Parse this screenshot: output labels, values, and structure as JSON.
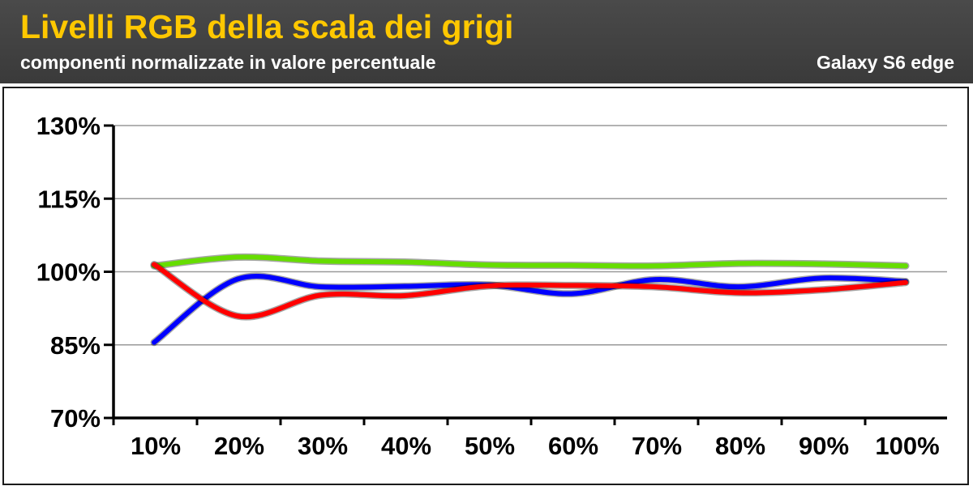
{
  "header": {
    "title": "Livelli RGB della scala dei grigi",
    "subtitle": "componenti normalizzate in valore percentuale",
    "device": "Galaxy S6 edge"
  },
  "colors": {
    "header_bg": "#404040",
    "title": "#ffc800",
    "red": "#ff0000",
    "green": "#66dd00",
    "blue": "#0000ff",
    "grid": "#999999"
  },
  "chart_data": {
    "type": "line",
    "title": "Livelli RGB della scala dei grigi",
    "subtitle": "componenti normalizzate in valore percentuale",
    "categories": [
      "10%",
      "20%",
      "30%",
      "40%",
      "50%",
      "60%",
      "70%",
      "80%",
      "90%",
      "100%"
    ],
    "y_ticks": [
      "70%",
      "85%",
      "100%",
      "115%",
      "130%"
    ],
    "ylim": [
      70,
      130
    ],
    "grid": true,
    "series": [
      {
        "color_key": "green",
        "values": [
          101.2,
          103.0,
          102.2,
          102.0,
          101.4,
          101.3,
          101.2,
          101.7,
          101.6,
          101.2
        ]
      },
      {
        "color_key": "blue",
        "values": [
          85.5,
          98.5,
          96.9,
          97.0,
          97.3,
          95.5,
          98.4,
          96.9,
          98.7,
          98.0
        ]
      },
      {
        "color_key": "red",
        "values": [
          101.5,
          90.9,
          95.2,
          95.1,
          97.1,
          97.2,
          96.9,
          95.7,
          96.3,
          97.8
        ]
      }
    ]
  }
}
